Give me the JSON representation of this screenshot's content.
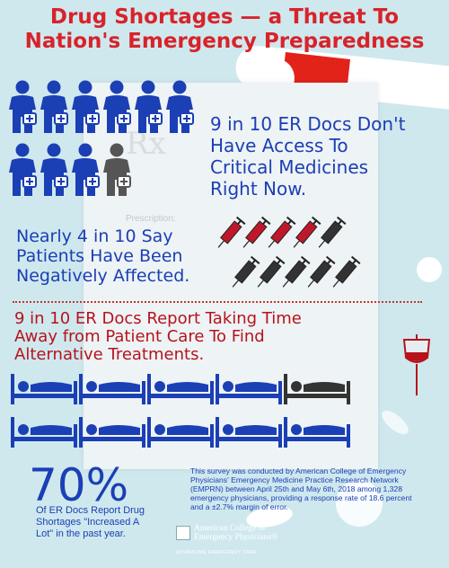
{
  "title": {
    "line1": "Drug Shortages — a Threat To",
    "line2": "Nation's Emergency Preparedness"
  },
  "background": {
    "rx_mark": "Rx",
    "prescription_label": "Prescription:"
  },
  "stat_access": {
    "lines": [
      "9 in 10 ER Docs Don't",
      "Have Access To",
      "Critical Medicines",
      "Right Now."
    ],
    "icon": "doctor-with-medical-bag-icon",
    "highlighted_count": 9,
    "total_count": 10
  },
  "stat_patients": {
    "lines": [
      "Nearly 4 in 10 Say",
      "Patients Have Been",
      "Negatively Affected."
    ],
    "icon": "syringe-icon",
    "highlighted_count": 4,
    "total_count": 10
  },
  "stat_time": {
    "lines": [
      "9 in 10 ER Docs Report Taking Time",
      "Away from Patient Care To Find",
      "Alternative Treatments."
    ],
    "icon": "hospital-bed-icon",
    "highlighted_count": 9,
    "total_count": 10
  },
  "stat_increase": {
    "percent": "70%",
    "lines": [
      "Of ER Docs Report Drug",
      "Shortages \"Increased A",
      "Lot\" in the past year."
    ]
  },
  "survey_note": "This survey was conducted by American College of Emergency Physicians' Emergency Medicine Practice Research Network (EMPRN) between April 25th and May 6th, 2018 among 1,328 emergency physicians, providing a response rate of 18.6 percent and a ±2.7% margin of error.",
  "logo": {
    "line1": "American College of",
    "line2": "Emergency Physicians®",
    "tagline": "ADVANCING EMERGENCY CARE"
  },
  "colors": {
    "background": "#cfe8ee",
    "title_red": "#d8232a",
    "blue": "#1b3fb4",
    "dark_red": "#b6131b",
    "syringe_red": "#c0182a",
    "gray": "#555555"
  }
}
